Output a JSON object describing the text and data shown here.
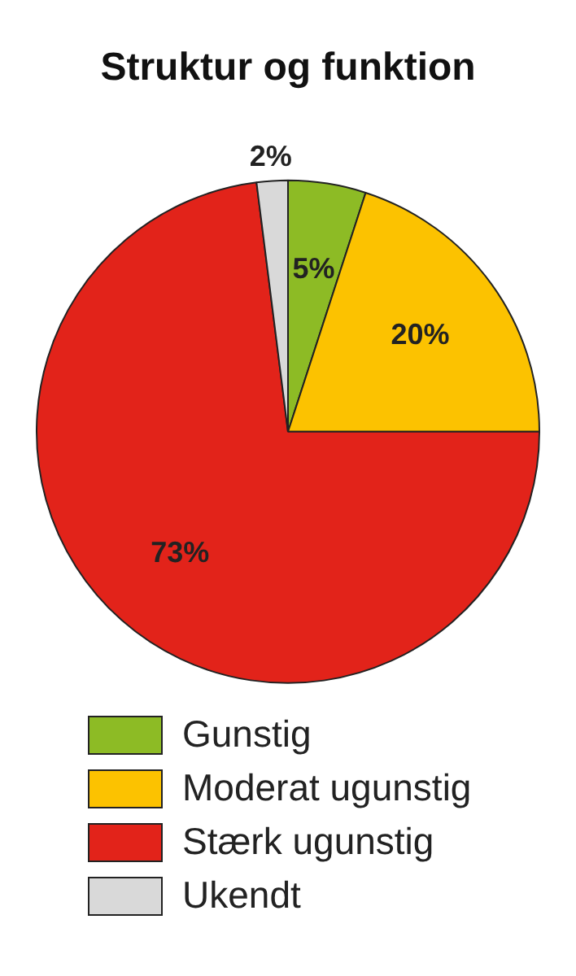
{
  "chart_data": {
    "type": "pie",
    "title": "Struktur og funktion",
    "categories": [
      "Gunstig",
      "Moderat ugunstig",
      "Stærk ugunstig",
      "Ukendt"
    ],
    "values": [
      5,
      20,
      73,
      2
    ],
    "colors": [
      "#8dbb25",
      "#fcc200",
      "#e2231a",
      "#d9d9d9"
    ],
    "value_labels": [
      "5%",
      "20%",
      "73%",
      "2%"
    ],
    "legend": "bottom"
  }
}
